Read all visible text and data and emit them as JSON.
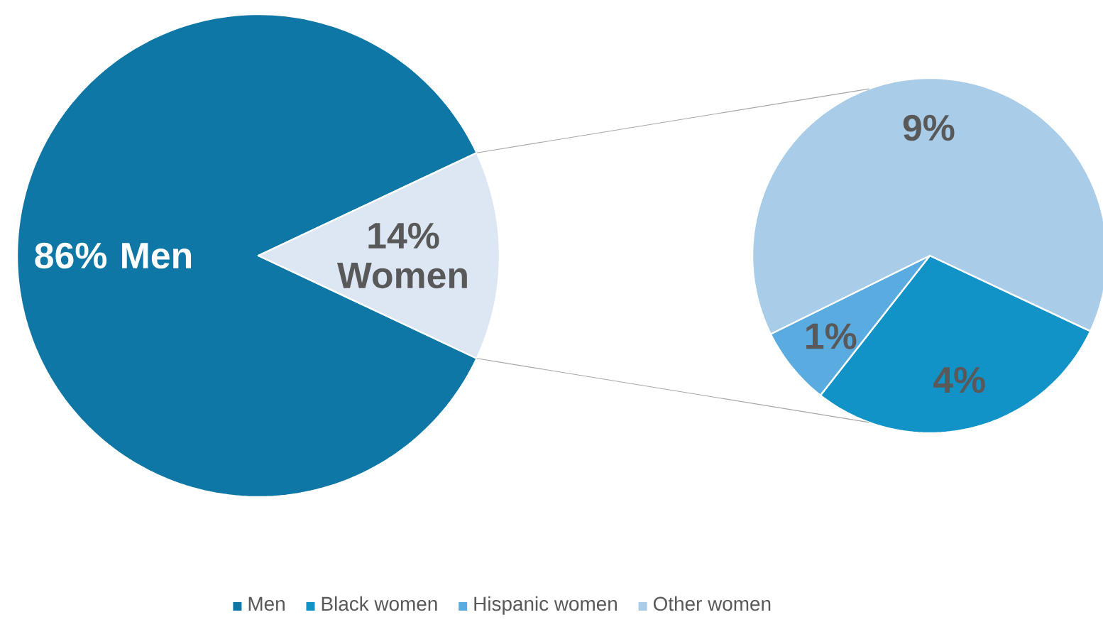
{
  "chart_data": [
    {
      "type": "pie",
      "categories": [
        "Men",
        null
      ],
      "values": [
        86,
        14
      ],
      "colors": [
        "#0e77a6",
        "#dde7f3"
      ],
      "value_labels": [
        "86% Men",
        "14% Women"
      ],
      "legend": "bottom"
    },
    {
      "type": "pie",
      "categories": [
        "Black women",
        "Hispanic women",
        "Other women"
      ],
      "values": [
        4,
        1,
        9
      ],
      "colors": [
        "#1193c8",
        "#5aace0",
        "#a9cde9"
      ],
      "value_labels": [
        "4%",
        "1%",
        "9%"
      ],
      "legend": "bottom"
    }
  ]
}
